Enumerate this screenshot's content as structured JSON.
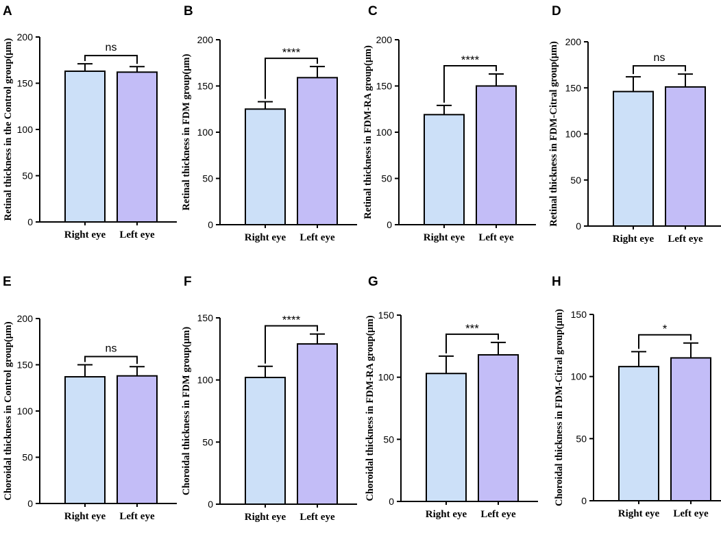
{
  "colors": {
    "right_eye": "#cce0f8",
    "left_eye": "#c3bdf7",
    "stroke": "#000000"
  },
  "chart_data": [
    {
      "type": "bar",
      "panel": "A",
      "categories": [
        "Right eye",
        "Left eye"
      ],
      "values": [
        163,
        162
      ],
      "errors": [
        8,
        6
      ],
      "ylim": [
        0,
        200
      ],
      "yticks": [
        0,
        50,
        100,
        150,
        200
      ],
      "ylabel": "Retinal thickness in the Control group(μm)",
      "significance": "ns"
    },
    {
      "type": "bar",
      "panel": "B",
      "categories": [
        "Right eye",
        "Left eye"
      ],
      "values": [
        125,
        159
      ],
      "errors": [
        8,
        12
      ],
      "ylim": [
        0,
        200
      ],
      "yticks": [
        0,
        50,
        100,
        150,
        200
      ],
      "ylabel": "Retinal thickness in FDM group(μm)",
      "significance": "****"
    },
    {
      "type": "bar",
      "panel": "C",
      "categories": [
        "Right eye",
        "Left eye"
      ],
      "values": [
        119,
        150
      ],
      "errors": [
        10,
        13
      ],
      "ylim": [
        0,
        200
      ],
      "yticks": [
        0,
        50,
        100,
        150,
        200
      ],
      "ylabel": "Retinal thickness in FDM-RA group(μm)",
      "significance": "****"
    },
    {
      "type": "bar",
      "panel": "D",
      "categories": [
        "Right eye",
        "Left eye"
      ],
      "values": [
        146,
        151
      ],
      "errors": [
        16,
        14
      ],
      "ylim": [
        0,
        200
      ],
      "yticks": [
        0,
        50,
        100,
        150,
        200
      ],
      "ylabel": "Retinal thickness in FDM-Citral group(μm)",
      "significance": "ns"
    },
    {
      "type": "bar",
      "panel": "E",
      "categories": [
        "Right eye",
        "Left eye"
      ],
      "values": [
        137,
        138
      ],
      "errors": [
        13,
        10
      ],
      "ylim": [
        0,
        200
      ],
      "yticks": [
        0,
        50,
        100,
        150,
        200
      ],
      "ylabel": "Choroidal thickness in Control group(μm)",
      "significance": "ns"
    },
    {
      "type": "bar",
      "panel": "F",
      "categories": [
        "Right eye",
        "Left eye"
      ],
      "values": [
        102,
        129
      ],
      "errors": [
        9,
        8
      ],
      "ylim": [
        0,
        150
      ],
      "yticks": [
        0,
        50,
        100,
        150
      ],
      "ylabel": "Choroidal thickness in FDM group(μm)",
      "significance": "****"
    },
    {
      "type": "bar",
      "panel": "G",
      "categories": [
        "Right eye",
        "Left eye"
      ],
      "values": [
        103,
        118
      ],
      "errors": [
        14,
        10
      ],
      "ylim": [
        0,
        150
      ],
      "yticks": [
        0,
        50,
        100,
        150
      ],
      "ylabel": "Choroidal thickness in FDM-RA group(μm)",
      "significance": "***"
    },
    {
      "type": "bar",
      "panel": "H",
      "categories": [
        "Right eye",
        "Left eye"
      ],
      "values": [
        108,
        115
      ],
      "errors": [
        12,
        12
      ],
      "ylim": [
        0,
        150
      ],
      "yticks": [
        0,
        50,
        100,
        150
      ],
      "ylabel": "Choroidal thickness in FDM-Citral group(μm)",
      "significance": "*"
    }
  ]
}
